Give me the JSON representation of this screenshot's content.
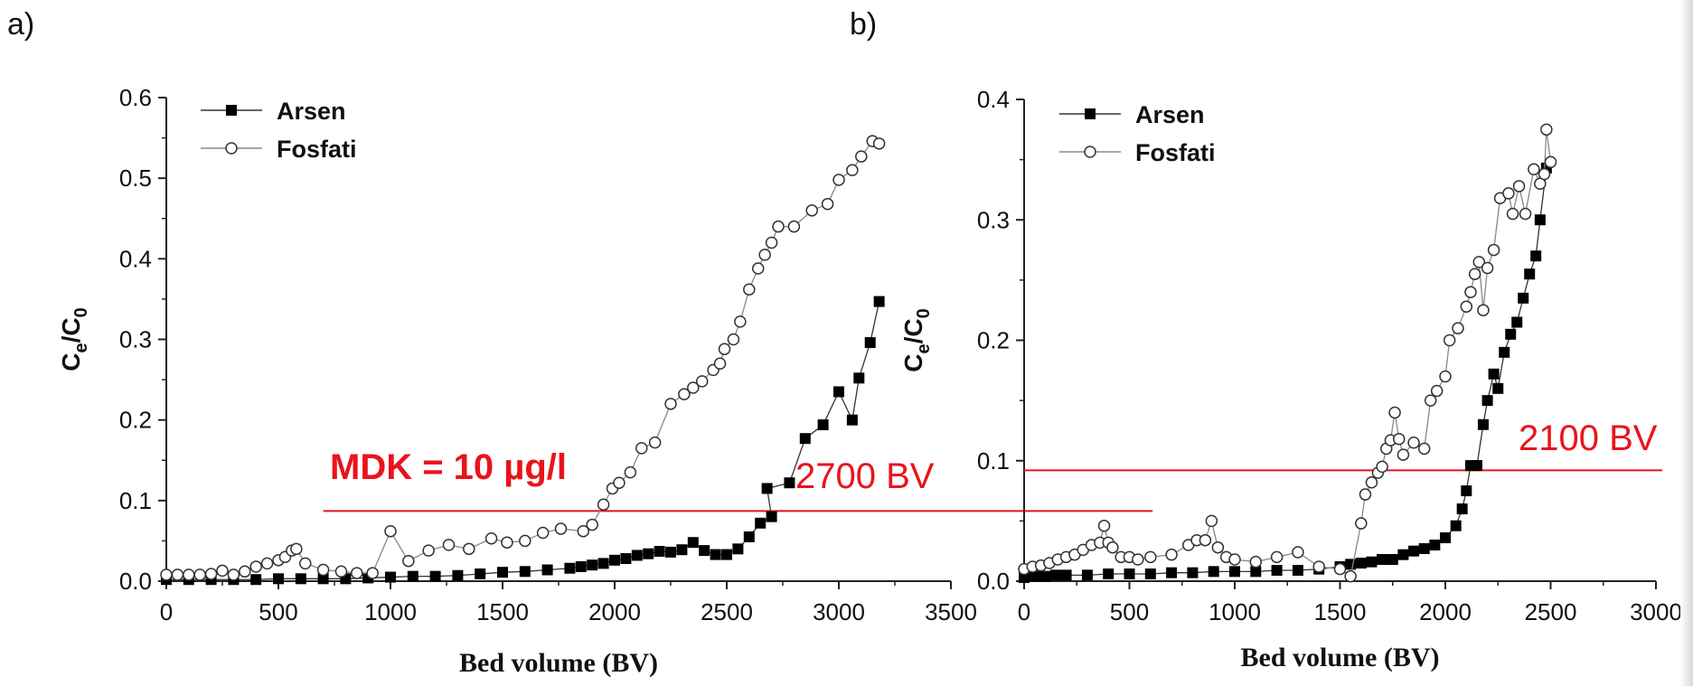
{
  "chart_data": [
    {
      "panel": "a)",
      "type": "scatter",
      "xlabel": "Bed volume (BV)",
      "ylabel": {
        "main": "C",
        "sub1": "e",
        "mid": "/C",
        "sub2": "0"
      },
      "xlim": [
        0,
        3500
      ],
      "ylim": [
        0,
        0.6
      ],
      "xticks": [
        "0",
        "500",
        "1000",
        "1500",
        "2000",
        "2500",
        "3000",
        "3500"
      ],
      "yticks": [
        "0.0",
        "0.1",
        "0.2",
        "0.3",
        "0.4",
        "0.5",
        "0.6"
      ],
      "legend_position": "top-left",
      "threshold": {
        "y": 0.087,
        "x_start": 700,
        "x_end": 4400,
        "color": "#e8141c"
      },
      "annotations": [
        "MDK = 10 µg/l",
        "2700 BV"
      ],
      "series": [
        {
          "name": "Arsen",
          "marker": "filled-square",
          "points": [
            [
              0,
              0.002
            ],
            [
              100,
              0.002
            ],
            [
              200,
              0.002
            ],
            [
              300,
              0.002
            ],
            [
              400,
              0.002
            ],
            [
              500,
              0.003
            ],
            [
              600,
              0.003
            ],
            [
              700,
              0.003
            ],
            [
              800,
              0.003
            ],
            [
              900,
              0.004
            ],
            [
              1000,
              0.005
            ],
            [
              1100,
              0.006
            ],
            [
              1200,
              0.006
            ],
            [
              1300,
              0.007
            ],
            [
              1400,
              0.009
            ],
            [
              1500,
              0.011
            ],
            [
              1600,
              0.012
            ],
            [
              1700,
              0.014
            ],
            [
              1800,
              0.016
            ],
            [
              1850,
              0.018
            ],
            [
              1900,
              0.02
            ],
            [
              1950,
              0.022
            ],
            [
              2000,
              0.026
            ],
            [
              2050,
              0.028
            ],
            [
              2100,
              0.032
            ],
            [
              2150,
              0.034
            ],
            [
              2200,
              0.037
            ],
            [
              2250,
              0.036
            ],
            [
              2300,
              0.039
            ],
            [
              2350,
              0.048
            ],
            [
              2400,
              0.038
            ],
            [
              2450,
              0.033
            ],
            [
              2500,
              0.033
            ],
            [
              2550,
              0.04
            ],
            [
              2600,
              0.055
            ],
            [
              2650,
              0.072
            ],
            [
              2700,
              0.08
            ],
            [
              2680,
              0.115
            ],
            [
              2780,
              0.122
            ],
            [
              2850,
              0.177
            ],
            [
              2930,
              0.194
            ],
            [
              3000,
              0.235
            ],
            [
              3060,
              0.2
            ],
            [
              3090,
              0.252
            ],
            [
              3140,
              0.296
            ],
            [
              3180,
              0.347
            ]
          ]
        },
        {
          "name": "Fosfati",
          "marker": "open-circle",
          "points": [
            [
              0,
              0.008
            ],
            [
              50,
              0.008
            ],
            [
              100,
              0.008
            ],
            [
              150,
              0.008
            ],
            [
              200,
              0.009
            ],
            [
              250,
              0.013
            ],
            [
              300,
              0.008
            ],
            [
              350,
              0.012
            ],
            [
              400,
              0.018
            ],
            [
              450,
              0.022
            ],
            [
              500,
              0.026
            ],
            [
              530,
              0.03
            ],
            [
              560,
              0.038
            ],
            [
              580,
              0.04
            ],
            [
              620,
              0.022
            ],
            [
              700,
              0.014
            ],
            [
              780,
              0.012
            ],
            [
              850,
              0.01
            ],
            [
              920,
              0.01
            ],
            [
              1000,
              0.062
            ],
            [
              1080,
              0.025
            ],
            [
              1170,
              0.038
            ],
            [
              1260,
              0.045
            ],
            [
              1350,
              0.04
            ],
            [
              1450,
              0.053
            ],
            [
              1520,
              0.048
            ],
            [
              1600,
              0.05
            ],
            [
              1680,
              0.06
            ],
            [
              1760,
              0.065
            ],
            [
              1860,
              0.062
            ],
            [
              1900,
              0.07
            ],
            [
              1950,
              0.095
            ],
            [
              1990,
              0.115
            ],
            [
              2020,
              0.122
            ],
            [
              2070,
              0.135
            ],
            [
              2120,
              0.165
            ],
            [
              2180,
              0.172
            ],
            [
              2250,
              0.22
            ],
            [
              2310,
              0.232
            ],
            [
              2350,
              0.24
            ],
            [
              2390,
              0.248
            ],
            [
              2440,
              0.262
            ],
            [
              2470,
              0.27
            ],
            [
              2490,
              0.288
            ],
            [
              2530,
              0.3
            ],
            [
              2560,
              0.322
            ],
            [
              2600,
              0.362
            ],
            [
              2640,
              0.388
            ],
            [
              2670,
              0.405
            ],
            [
              2700,
              0.42
            ],
            [
              2730,
              0.44
            ],
            [
              2800,
              0.44
            ],
            [
              2880,
              0.46
            ],
            [
              2950,
              0.468
            ],
            [
              3000,
              0.498
            ],
            [
              3060,
              0.51
            ],
            [
              3100,
              0.527
            ],
            [
              3150,
              0.546
            ],
            [
              3180,
              0.543
            ]
          ]
        }
      ]
    },
    {
      "panel": "b)",
      "type": "scatter",
      "xlabel": "Bed volume (BV)",
      "ylabel": {
        "main": "C",
        "sub1": "e",
        "mid": "/C",
        "sub2": "0"
      },
      "xlim": [
        0,
        3000
      ],
      "ylim": [
        0,
        0.4
      ],
      "xticks": [
        "0",
        "500",
        "1000",
        "1500",
        "2000",
        "2500",
        "3000"
      ],
      "yticks": [
        "0.0",
        "0.1",
        "0.2",
        "0.3",
        "0.4"
      ],
      "legend_position": "top-left",
      "threshold": {
        "y": 0.092,
        "x_start": 0,
        "x_end": 3030,
        "color": "#e8141c"
      },
      "annotations": [
        "2100 BV"
      ],
      "series": [
        {
          "name": "Arsen",
          "marker": "filled-square",
          "points": [
            [
              0,
              0.003
            ],
            [
              50,
              0.004
            ],
            [
              100,
              0.004
            ],
            [
              150,
              0.005
            ],
            [
              200,
              0.005
            ],
            [
              300,
              0.005
            ],
            [
              400,
              0.006
            ],
            [
              500,
              0.006
            ],
            [
              600,
              0.006
            ],
            [
              700,
              0.007
            ],
            [
              800,
              0.007
            ],
            [
              900,
              0.008
            ],
            [
              1000,
              0.008
            ],
            [
              1100,
              0.008
            ],
            [
              1200,
              0.009
            ],
            [
              1300,
              0.009
            ],
            [
              1400,
              0.01
            ],
            [
              1500,
              0.012
            ],
            [
              1550,
              0.014
            ],
            [
              1600,
              0.015
            ],
            [
              1650,
              0.016
            ],
            [
              1700,
              0.018
            ],
            [
              1750,
              0.018
            ],
            [
              1800,
              0.022
            ],
            [
              1850,
              0.025
            ],
            [
              1900,
              0.027
            ],
            [
              1950,
              0.03
            ],
            [
              2000,
              0.036
            ],
            [
              2050,
              0.046
            ],
            [
              2080,
              0.06
            ],
            [
              2100,
              0.075
            ],
            [
              2120,
              0.096
            ],
            [
              2150,
              0.096
            ],
            [
              2180,
              0.13
            ],
            [
              2200,
              0.15
            ],
            [
              2230,
              0.172
            ],
            [
              2250,
              0.16
            ],
            [
              2280,
              0.19
            ],
            [
              2310,
              0.205
            ],
            [
              2340,
              0.215
            ],
            [
              2370,
              0.235
            ],
            [
              2400,
              0.255
            ],
            [
              2430,
              0.27
            ],
            [
              2450,
              0.3
            ],
            [
              2480,
              0.343
            ]
          ]
        },
        {
          "name": "Fosfati",
          "marker": "open-circle",
          "points": [
            [
              0,
              0.01
            ],
            [
              40,
              0.012
            ],
            [
              80,
              0.013
            ],
            [
              120,
              0.015
            ],
            [
              160,
              0.018
            ],
            [
              200,
              0.02
            ],
            [
              240,
              0.022
            ],
            [
              280,
              0.026
            ],
            [
              320,
              0.03
            ],
            [
              360,
              0.032
            ],
            [
              380,
              0.046
            ],
            [
              400,
              0.032
            ],
            [
              420,
              0.028
            ],
            [
              460,
              0.02
            ],
            [
              500,
              0.02
            ],
            [
              540,
              0.018
            ],
            [
              600,
              0.02
            ],
            [
              700,
              0.022
            ],
            [
              780,
              0.03
            ],
            [
              820,
              0.034
            ],
            [
              860,
              0.034
            ],
            [
              890,
              0.05
            ],
            [
              920,
              0.028
            ],
            [
              960,
              0.02
            ],
            [
              1000,
              0.018
            ],
            [
              1100,
              0.016
            ],
            [
              1200,
              0.02
            ],
            [
              1300,
              0.024
            ],
            [
              1400,
              0.012
            ],
            [
              1500,
              0.01
            ],
            [
              1550,
              0.004
            ],
            [
              1600,
              0.048
            ],
            [
              1620,
              0.072
            ],
            [
              1650,
              0.082
            ],
            [
              1680,
              0.09
            ],
            [
              1700,
              0.095
            ],
            [
              1720,
              0.11
            ],
            [
              1740,
              0.117
            ],
            [
              1760,
              0.14
            ],
            [
              1780,
              0.118
            ],
            [
              1800,
              0.105
            ],
            [
              1850,
              0.115
            ],
            [
              1900,
              0.11
            ],
            [
              1930,
              0.15
            ],
            [
              1960,
              0.158
            ],
            [
              2000,
              0.17
            ],
            [
              2020,
              0.2
            ],
            [
              2060,
              0.21
            ],
            [
              2100,
              0.228
            ],
            [
              2120,
              0.24
            ],
            [
              2140,
              0.255
            ],
            [
              2160,
              0.265
            ],
            [
              2180,
              0.225
            ],
            [
              2200,
              0.26
            ],
            [
              2230,
              0.275
            ],
            [
              2260,
              0.318
            ],
            [
              2300,
              0.322
            ],
            [
              2320,
              0.305
            ],
            [
              2350,
              0.328
            ],
            [
              2380,
              0.305
            ],
            [
              2420,
              0.342
            ],
            [
              2450,
              0.33
            ],
            [
              2470,
              0.338
            ],
            [
              2480,
              0.375
            ],
            [
              2500,
              0.348
            ]
          ]
        }
      ]
    }
  ]
}
